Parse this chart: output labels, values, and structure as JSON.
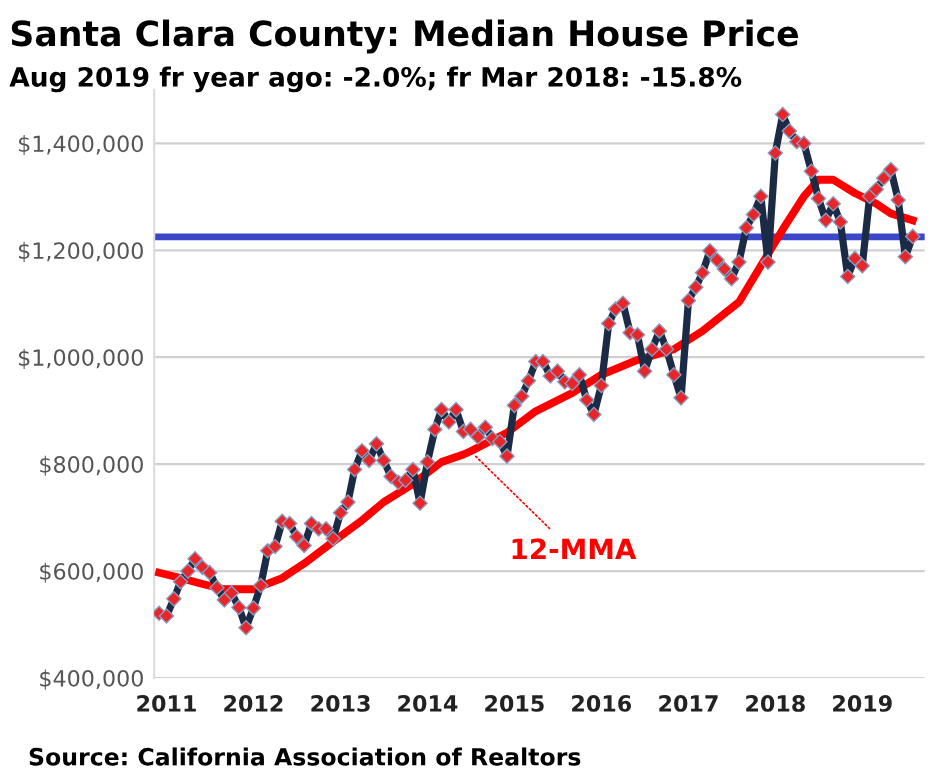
{
  "chart_data": {
    "type": "line",
    "title": "Santa Clara County: Median House Price",
    "subtitle": "Aug 2019 fr year ago: -2.0%; fr Mar 2018: -15.8%",
    "x": [
      "2010-12",
      "2011-01",
      "2011-02",
      "2011-03",
      "2011-04",
      "2011-05",
      "2011-06",
      "2011-07",
      "2011-08",
      "2011-09",
      "2011-10",
      "2011-11",
      "2011-12",
      "2012-01",
      "2012-02",
      "2012-03",
      "2012-04",
      "2012-05",
      "2012-06",
      "2012-07",
      "2012-08",
      "2012-09",
      "2012-10",
      "2012-11",
      "2012-12",
      "2013-01",
      "2013-02",
      "2013-03",
      "2013-04",
      "2013-05",
      "2013-06",
      "2013-07",
      "2013-08",
      "2013-09",
      "2013-10",
      "2013-11",
      "2013-12",
      "2014-01",
      "2014-02",
      "2014-03",
      "2014-04",
      "2014-05",
      "2014-06",
      "2014-07",
      "2014-08",
      "2014-09",
      "2014-10",
      "2014-11",
      "2014-12",
      "2015-01",
      "2015-02",
      "2015-03",
      "2015-04",
      "2015-05",
      "2015-06",
      "2015-07",
      "2015-08",
      "2015-09",
      "2015-10",
      "2015-11",
      "2015-12",
      "2016-01",
      "2016-02",
      "2016-03",
      "2016-04",
      "2016-05",
      "2016-06",
      "2016-07",
      "2016-08",
      "2016-09",
      "2016-10",
      "2016-11",
      "2016-12",
      "2017-01",
      "2017-02",
      "2017-03",
      "2017-04",
      "2017-05",
      "2017-06",
      "2017-07",
      "2017-08",
      "2017-09",
      "2017-10",
      "2017-11",
      "2017-12",
      "2018-01",
      "2018-02",
      "2018-03",
      "2018-04",
      "2018-05",
      "2018-06",
      "2018-07",
      "2018-08",
      "2018-09",
      "2018-10",
      "2018-11",
      "2018-12",
      "2019-01",
      "2019-02",
      "2019-03",
      "2019-04",
      "2019-05",
      "2019-06",
      "2019-07",
      "2019-08"
    ],
    "series": [
      {
        "color": "#1c2b45",
        "marker": "diamond",
        "values": [
          521000,
          516000,
          548000,
          580000,
          600000,
          623000,
          607000,
          597000,
          569000,
          546000,
          559000,
          532000,
          494000,
          531000,
          573000,
          638000,
          646000,
          693000,
          689000,
          664000,
          648000,
          689000,
          679000,
          679000,
          661000,
          709000,
          729000,
          790000,
          825000,
          807000,
          838000,
          807000,
          777000,
          766000,
          770000,
          790000,
          727000,
          804000,
          865000,
          902000,
          879000,
          902000,
          861000,
          865000,
          851000,
          869000,
          848000,
          842000,
          815000,
          910000,
          927000,
          956000,
          992000,
          992000,
          965000,
          974000,
          954000,
          951000,
          967000,
          920000,
          893000,
          947000,
          1063000,
          1090000,
          1101000,
          1046000,
          1042000,
          974000,
          1015000,
          1049000,
          1015000,
          967000,
          924000,
          1106000,
          1131000,
          1158000,
          1199000,
          1182000,
          1165000,
          1147000,
          1178000,
          1242000,
          1267000,
          1301000,
          1178000,
          1382000,
          1454000,
          1423000,
          1403000,
          1400000,
          1348000,
          1297000,
          1256000,
          1287000,
          1253000,
          1151000,
          1185000,
          1171000,
          1301000,
          1314000,
          1335000,
          1351000,
          1294000,
          1188000,
          1226000
        ]
      },
      {
        "color": "#ff0000",
        "marker": "none",
        "x": [
          "2010-12",
          "2011-03",
          "2011-06",
          "2011-09",
          "2012-01",
          "2012-05",
          "2012-08",
          "2012-12",
          "2013-04",
          "2013-07",
          "2013-11",
          "2014-03",
          "2014-06",
          "2014-07",
          "2014-12",
          "2015-04",
          "2015-09",
          "2016-01",
          "2016-06",
          "2016-11",
          "2017-03",
          "2017-08",
          "2017-11",
          "2018-02",
          "2018-05",
          "2018-07",
          "2018-09",
          "2018-12",
          "2019-03",
          "2019-05",
          "2019-08"
        ],
        "values": [
          597000,
          587000,
          576000,
          566000,
          566000,
          587000,
          614000,
          655000,
          695000,
          729000,
          763000,
          804000,
          818000,
          824000,
          859000,
          899000,
          933000,
          967000,
          995000,
          1015000,
          1049000,
          1103000,
          1171000,
          1239000,
          1301000,
          1332000,
          1332000,
          1307000,
          1287000,
          1269000,
          1256000
        ]
      }
    ],
    "xlim": [
      "2010-11-10",
      "2019-09-20"
    ],
    "xticks": [
      {
        "value": "2011-01",
        "label": "2011"
      },
      {
        "value": "2012-01",
        "label": "2012"
      },
      {
        "value": "2013-01",
        "label": "2013"
      },
      {
        "value": "2014-01",
        "label": "2014"
      },
      {
        "value": "2015-01",
        "label": "2015"
      },
      {
        "value": "2016-01",
        "label": "2016"
      },
      {
        "value": "2017-01",
        "label": "2017"
      },
      {
        "value": "2018-01",
        "label": "2018"
      },
      {
        "value": "2019-01",
        "label": "2019"
      }
    ],
    "ylim": [
      400000,
      1500000
    ],
    "yticks": [
      {
        "value": 400000,
        "label": "$400,000"
      },
      {
        "value": 600000,
        "label": "$600,000"
      },
      {
        "value": 800000,
        "label": "$800,000"
      },
      {
        "value": 1000000,
        "label": "$1,000,000"
      },
      {
        "value": 1200000,
        "label": "$1,200,000"
      },
      {
        "value": 1400000,
        "label": "$1,400,000"
      }
    ],
    "grid": "y",
    "line_style": "solid",
    "legend": false,
    "ref_lines": [
      {
        "axis": "y",
        "value": 1225000,
        "color": "#3b47c9"
      }
    ],
    "annotations": [
      {
        "text": "12-MMA",
        "x": "2014-07",
        "y": 824000
      },
      "Source: California Association of Realtors"
    ]
  }
}
